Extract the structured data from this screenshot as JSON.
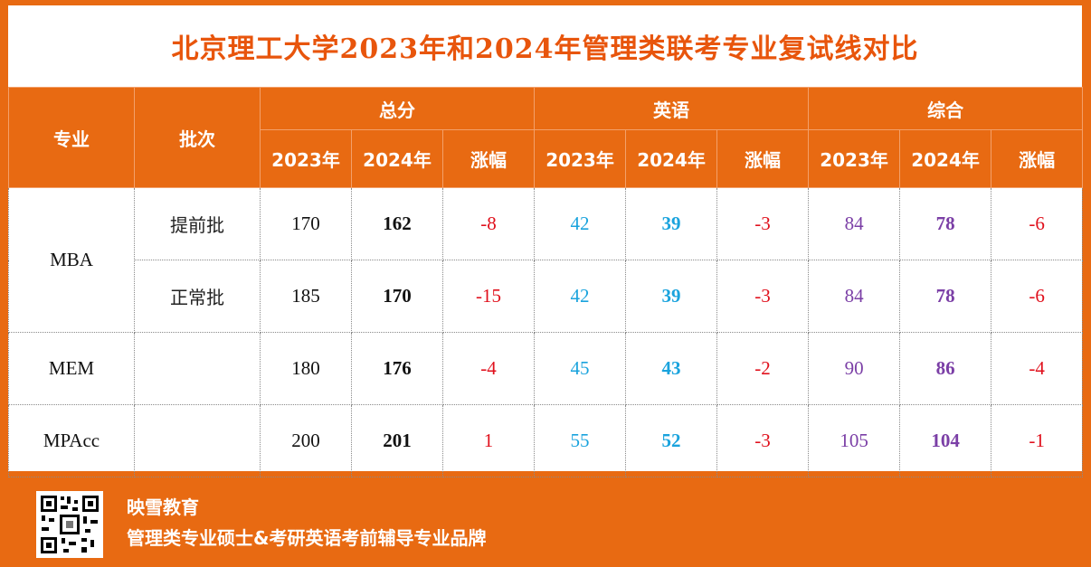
{
  "title": "北京理工大学2023年和2024年管理类联考专业复试线对比",
  "headers": {
    "major": "专业",
    "batch": "批次",
    "total": "总分",
    "english": "英语",
    "comprehensive": "综合",
    "y2023": "2023年",
    "y2024": "2024年",
    "change": "涨幅"
  },
  "rows": [
    {
      "major": "MBA",
      "batch": "提前批",
      "total": [
        "170",
        "162",
        "-8"
      ],
      "english": [
        "42",
        "39",
        "-3"
      ],
      "comp": [
        "84",
        "78",
        "-6"
      ]
    },
    {
      "major": "",
      "batch": "正常批",
      "total": [
        "185",
        "170",
        "-15"
      ],
      "english": [
        "42",
        "39",
        "-3"
      ],
      "comp": [
        "84",
        "78",
        "-6"
      ]
    },
    {
      "major": "MEM",
      "batch": "",
      "total": [
        "180",
        "176",
        "-4"
      ],
      "english": [
        "45",
        "43",
        "-2"
      ],
      "comp": [
        "90",
        "86",
        "-4"
      ]
    },
    {
      "major": "MPAcc",
      "batch": "",
      "total": [
        "200",
        "201",
        "1"
      ],
      "english": [
        "55",
        "52",
        "-3"
      ],
      "comp": [
        "105",
        "104",
        "-1"
      ]
    }
  ],
  "footer": {
    "brand": "映雪教育",
    "slogan": "管理类专业硕士&考研英语考前辅导专业品牌",
    "qr_icon": "qr-code-icon"
  },
  "colors": {
    "accent": "#e86a12",
    "title": "#e8550c",
    "negative": "#e0101c",
    "english": "#1aa3dd",
    "comprehensive": "#7b3fa6"
  }
}
